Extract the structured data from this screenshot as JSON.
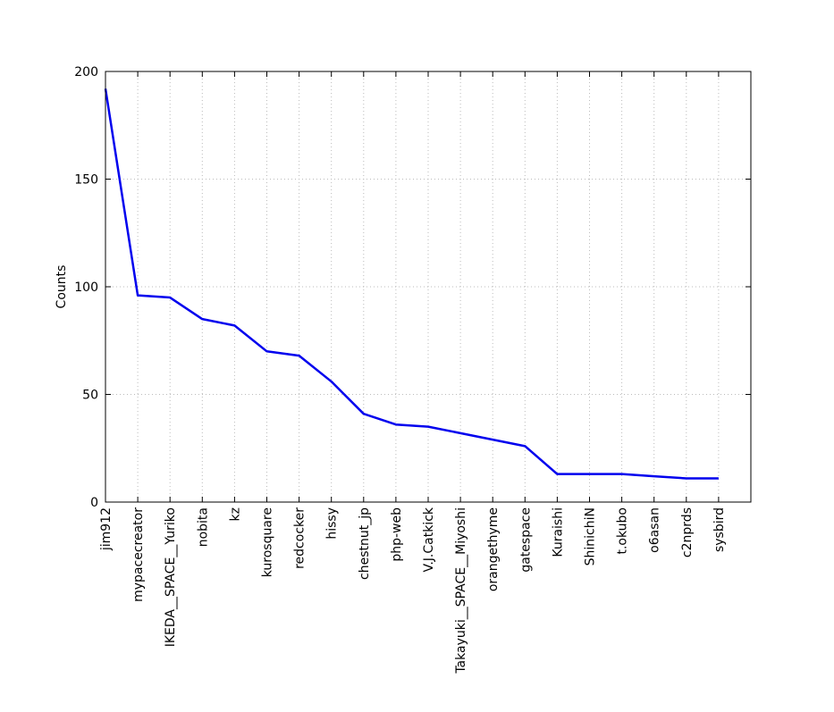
{
  "chart_data": {
    "type": "line",
    "ylabel": "Counts",
    "categories": [
      "jim912",
      "mypacecreator",
      "IKEDA__SPACE__Yuriko",
      "nobita",
      "kz",
      "kurosquare",
      "redcocker",
      "hissy",
      "chestnut_jp",
      "php-web",
      "V.J.Catkick",
      "Takayuki__SPACE__Miyoshi",
      "orangethyme",
      "gatespace",
      "Kuraishi",
      "ShinichiN",
      "t.okubo",
      "o6asan",
      "c2nprds",
      "sysbird"
    ],
    "series": [
      {
        "name": "Counts",
        "color": "#0000ee",
        "values": [
          192,
          96,
          95,
          85,
          82,
          70,
          68,
          56,
          41,
          36,
          35,
          32,
          29,
          26,
          13,
          13,
          13,
          12,
          11,
          11
        ]
      }
    ],
    "ylim": [
      0,
      200
    ],
    "yticks": [
      0,
      50,
      100,
      150,
      200
    ],
    "grid": true
  }
}
